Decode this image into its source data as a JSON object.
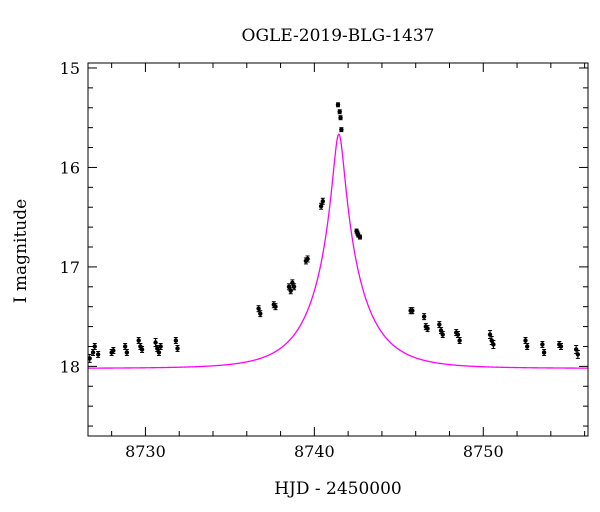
{
  "chart_data": {
    "type": "scatter",
    "title": "OGLE-2019-BLG-1437",
    "xlabel": "HJD - 2450000",
    "ylabel": "I magnitude",
    "xlim": [
      8726.6,
      8756.2
    ],
    "ylim": [
      18.7,
      14.95
    ],
    "y_inverted": true,
    "grid": false,
    "x_ticks": [
      8730,
      8740,
      8750
    ],
    "y_ticks": [
      15,
      16,
      17,
      18
    ],
    "colors": {
      "model": "#ff00ff",
      "points": "#000000"
    },
    "model": {
      "name": "",
      "type": "pspl",
      "t0": 8741.45,
      "u0": 0.115,
      "tE": 2.75,
      "baseline_mag": 18.02,
      "blending_fs": 1.0
    },
    "series": [
      {
        "name": "",
        "x": [
          8726.7,
          8726.9,
          8727.0,
          8727.2,
          8728.0,
          8728.1,
          8728.8,
          8728.9,
          8729.6,
          8729.7,
          8729.8,
          8730.6,
          8730.7,
          8730.8,
          8730.9,
          8731.8,
          8731.9,
          8736.7,
          8736.8,
          8737.6,
          8737.7,
          8738.5,
          8738.6,
          8738.7,
          8738.8,
          8739.5,
          8739.6,
          8740.4,
          8740.5,
          8741.4,
          8741.5,
          8741.55,
          8741.6,
          8742.5,
          8742.55,
          8742.6,
          8742.7,
          8745.7,
          8745.8,
          8746.5,
          8746.6,
          8746.7,
          8747.4,
          8747.5,
          8747.6,
          8748.4,
          8748.5,
          8748.6,
          8750.4,
          8750.5,
          8750.6,
          8752.5,
          8752.6,
          8753.5,
          8753.6,
          8754.5,
          8754.6,
          8755.5,
          8755.6
        ],
        "y": [
          17.92,
          17.86,
          17.8,
          17.88,
          17.86,
          17.84,
          17.8,
          17.86,
          17.74,
          17.8,
          17.83,
          17.76,
          17.82,
          17.86,
          17.8,
          17.74,
          17.82,
          17.42,
          17.47,
          17.38,
          17.4,
          17.2,
          17.24,
          17.16,
          17.2,
          16.94,
          16.92,
          16.39,
          16.34,
          15.37,
          15.44,
          15.5,
          15.62,
          16.64,
          16.66,
          16.68,
          16.7,
          17.44,
          17.44,
          17.5,
          17.6,
          17.62,
          17.58,
          17.64,
          17.68,
          17.66,
          17.68,
          17.74,
          17.68,
          17.74,
          17.78,
          17.74,
          17.8,
          17.78,
          17.86,
          17.78,
          17.8,
          17.83,
          17.88
        ],
        "err": [
          0.04,
          0.03,
          0.03,
          0.03,
          0.03,
          0.03,
          0.03,
          0.03,
          0.03,
          0.03,
          0.03,
          0.04,
          0.03,
          0.03,
          0.03,
          0.03,
          0.03,
          0.03,
          0.03,
          0.03,
          0.03,
          0.03,
          0.03,
          0.03,
          0.03,
          0.03,
          0.03,
          0.03,
          0.03,
          0.02,
          0.02,
          0.02,
          0.02,
          0.02,
          0.02,
          0.02,
          0.02,
          0.03,
          0.03,
          0.03,
          0.03,
          0.03,
          0.03,
          0.03,
          0.03,
          0.03,
          0.03,
          0.03,
          0.04,
          0.04,
          0.04,
          0.03,
          0.03,
          0.03,
          0.03,
          0.03,
          0.03,
          0.04,
          0.04
        ]
      }
    ]
  }
}
